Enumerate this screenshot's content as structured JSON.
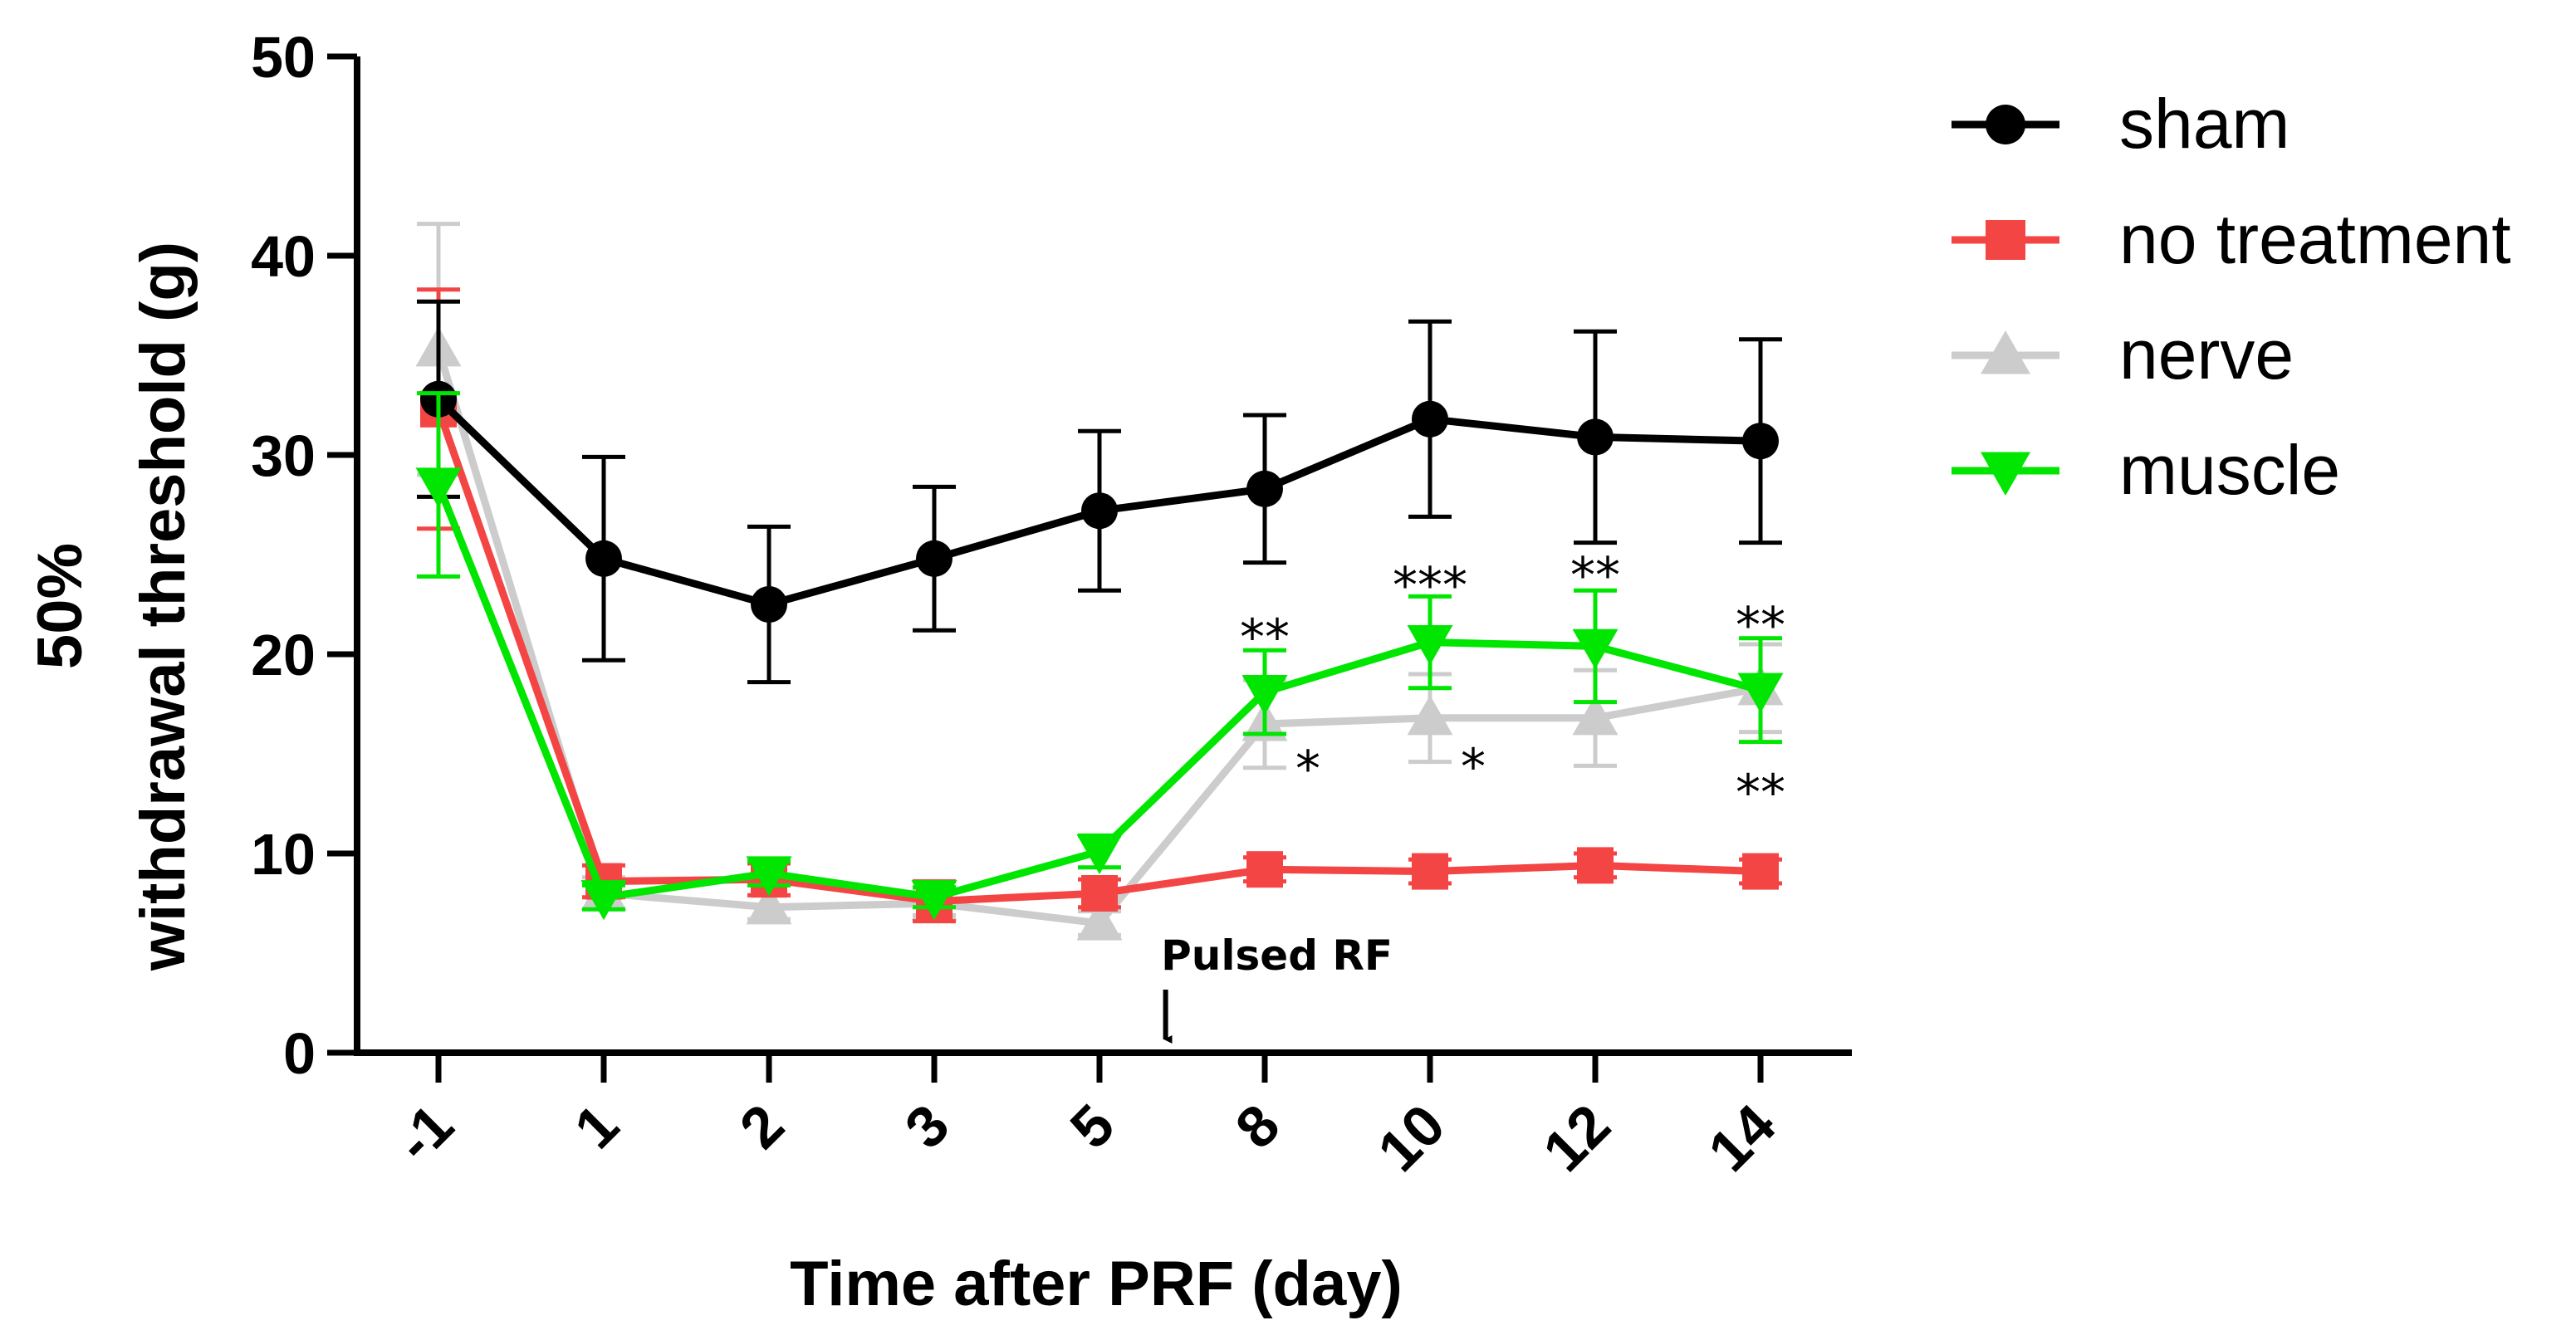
{
  "chart_data": {
    "type": "line",
    "title": "",
    "xlabel": "Time after PRF (day)",
    "ylabel_line1": "50%",
    "ylabel_line2": "withdrawal threshold (g)",
    "categories": [
      "-1",
      "1",
      "2",
      "3",
      "5",
      "8",
      "10",
      "12",
      "14"
    ],
    "ylim": [
      0,
      50
    ],
    "yticks": [
      "0",
      "10",
      "20",
      "30",
      "40",
      "50"
    ],
    "legend_position": "top-right",
    "series": [
      {
        "name": "sham",
        "color": "#000000",
        "marker": "circle",
        "values": [
          32.8,
          24.8,
          22.5,
          24.8,
          27.2,
          28.3,
          31.8,
          30.9,
          30.7
        ],
        "errors": [
          4.9,
          5.1,
          3.9,
          3.6,
          4.0,
          3.7,
          4.9,
          5.3,
          5.1
        ]
      },
      {
        "name": "no treatment",
        "color": "#f44545",
        "marker": "square",
        "values": [
          32.3,
          8.6,
          8.7,
          7.6,
          8.0,
          9.2,
          9.1,
          9.4,
          9.1
        ],
        "errors": [
          6.0,
          0.8,
          0.8,
          1.0,
          0.7,
          0.6,
          0.6,
          0.6,
          0.6
        ]
      },
      {
        "name": "nerve",
        "color": "#cccccc",
        "marker": "triangle-up",
        "values": [
          35.3,
          8.0,
          7.3,
          7.5,
          6.5,
          16.5,
          16.8,
          16.8,
          18.3
        ],
        "errors": [
          6.3,
          0.8,
          0.6,
          0.6,
          0.6,
          2.2,
          2.2,
          2.4,
          2.2
        ]
      },
      {
        "name": "muscle",
        "color": "#00e600",
        "marker": "triangle-down",
        "values": [
          28.5,
          7.8,
          9.0,
          7.8,
          10.1,
          18.1,
          20.6,
          20.4,
          18.2
        ],
        "errors": [
          4.6,
          0.6,
          0.6,
          0.5,
          0.8,
          2.1,
          2.3,
          2.8,
          2.6
        ]
      }
    ],
    "annotations": [
      {
        "text": "**",
        "category": "8",
        "value": 21.0
      },
      {
        "text": "***",
        "category": "10",
        "value": 23.6
      },
      {
        "text": "**",
        "category": "12",
        "value": 24.1
      },
      {
        "text": "**",
        "category": "14",
        "value": 21.6
      },
      {
        "text": "*",
        "category": "8",
        "value": 14.4,
        "offset": "right"
      },
      {
        "text": "*",
        "category": "10",
        "value": 14.5,
        "offset": "right"
      },
      {
        "text": "**",
        "category": "14",
        "value": 13.2
      }
    ],
    "event_marker": {
      "text": "Pulsed RF",
      "between": [
        "5",
        "8"
      ],
      "position": 0.4
    }
  }
}
